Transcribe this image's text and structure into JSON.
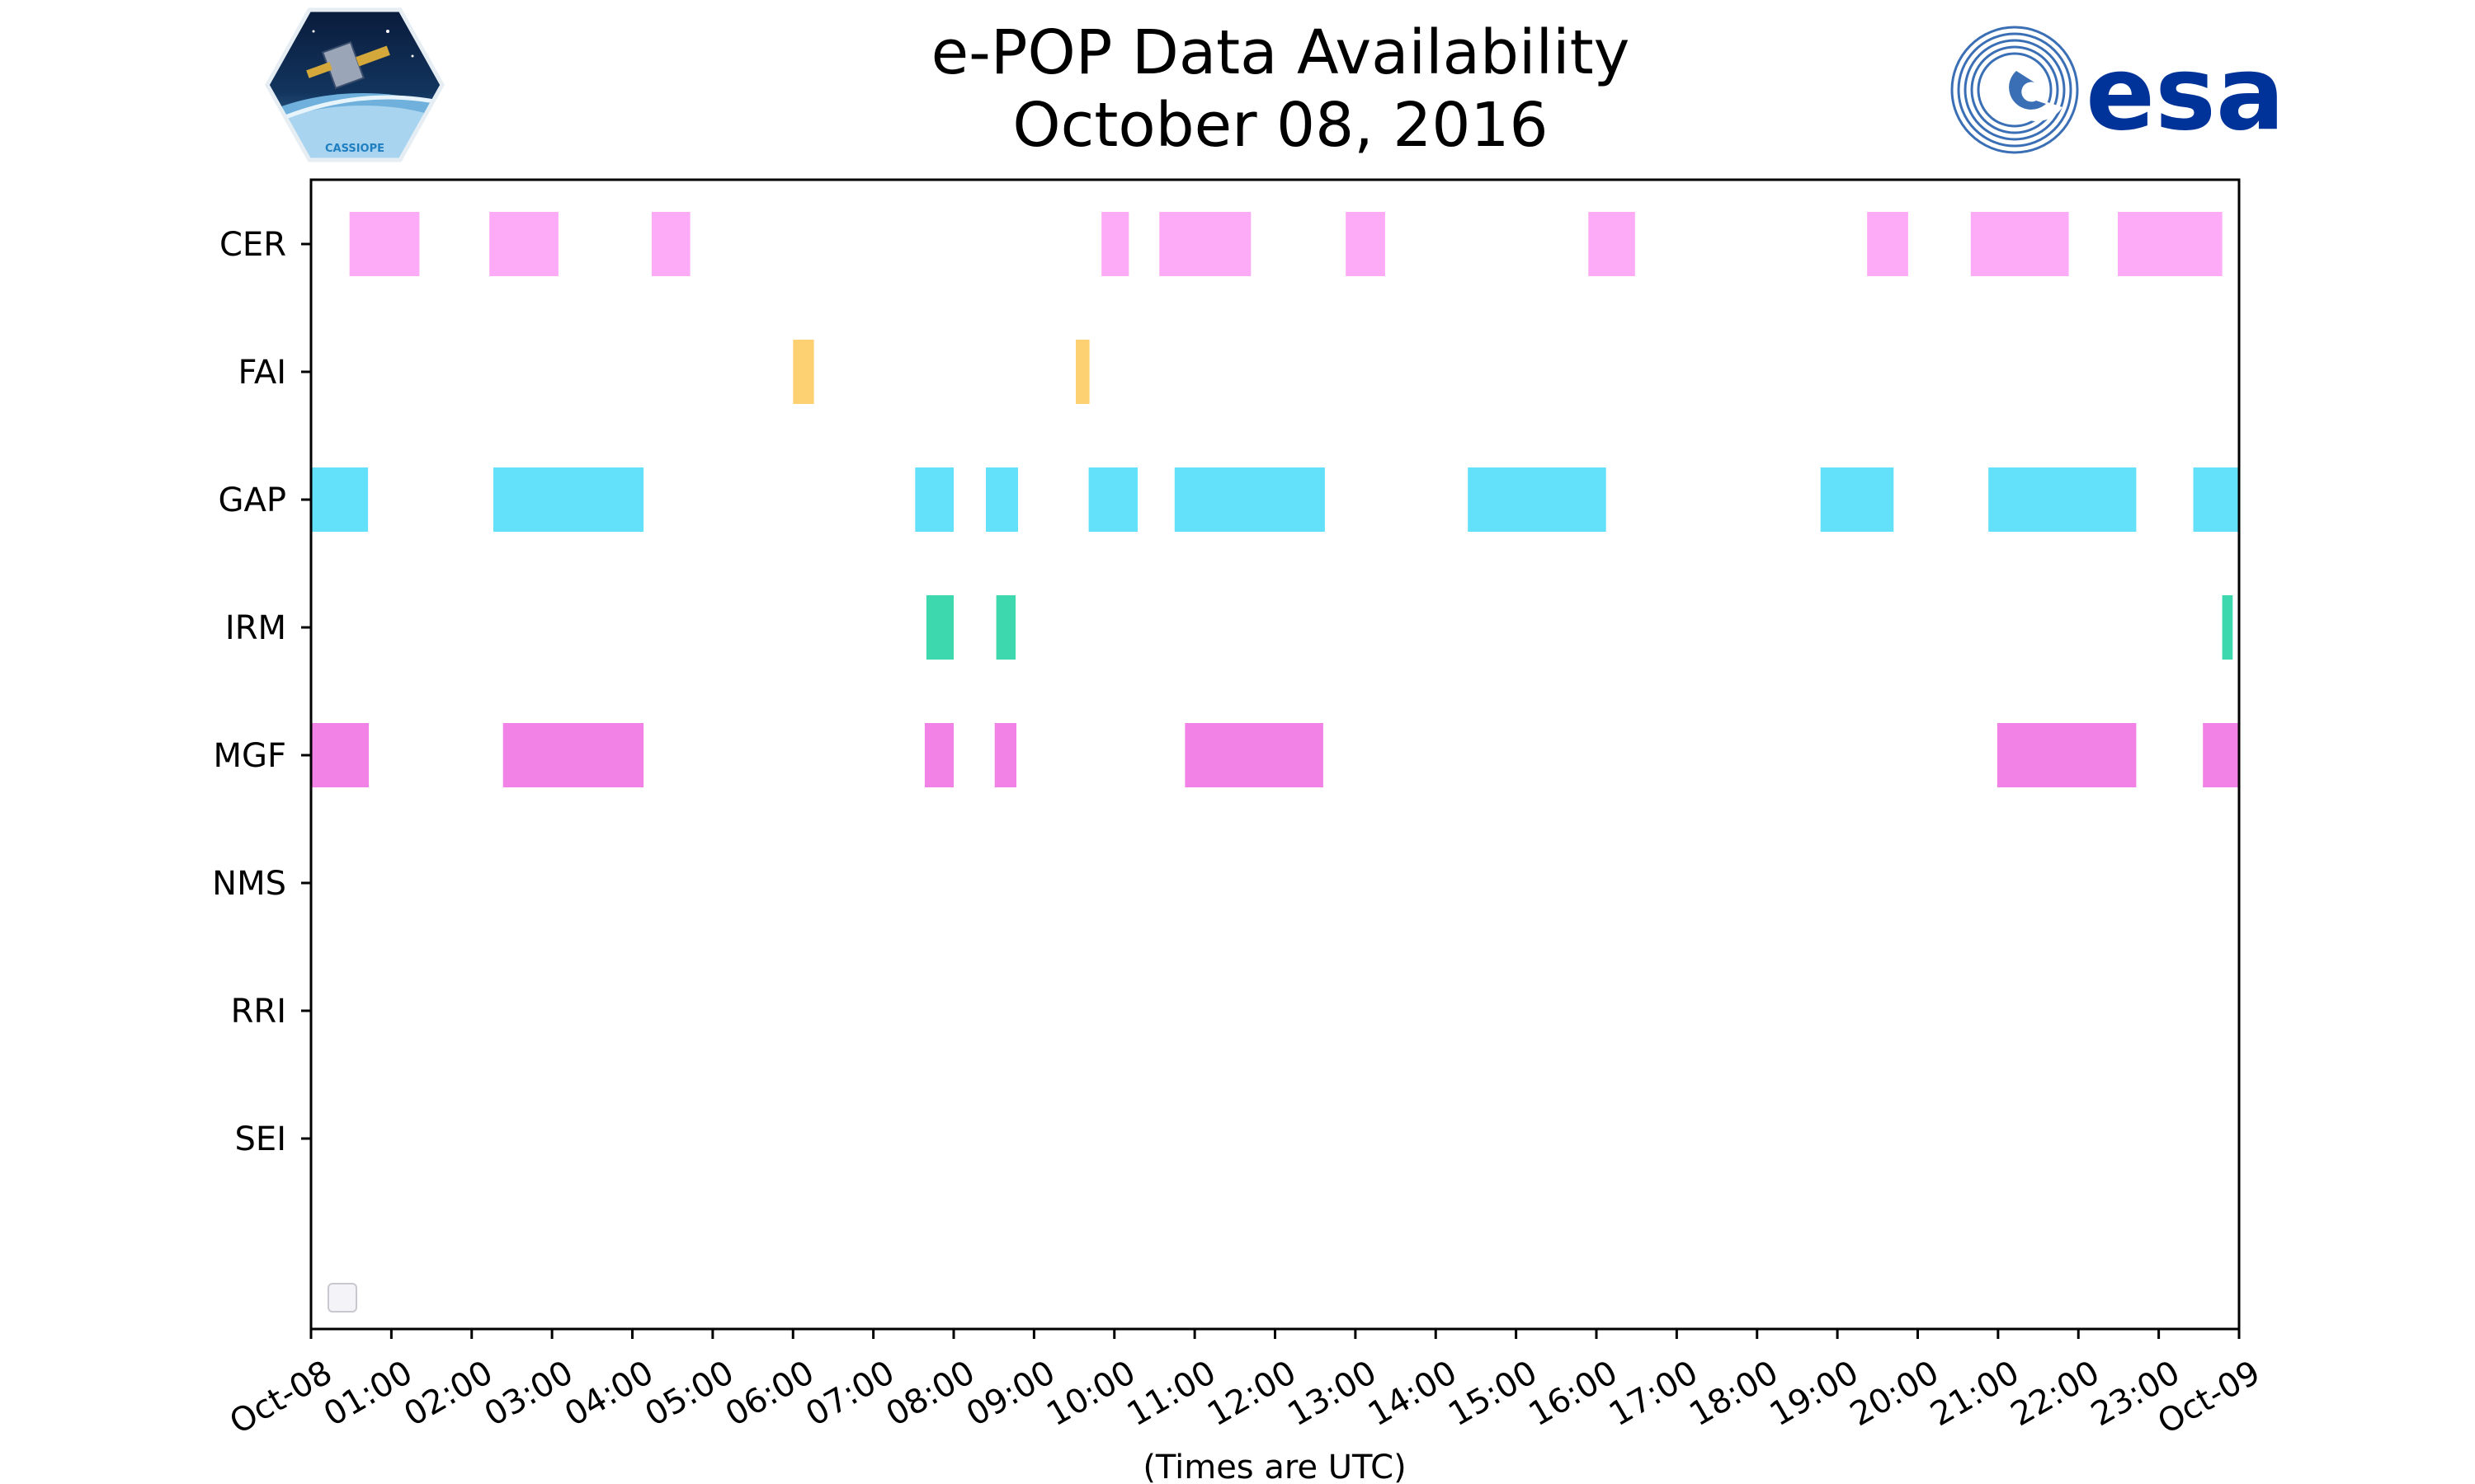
{
  "title": "e-POP Data Availability",
  "subtitle": "October 08, 2016",
  "logos": {
    "left": "CASSIOPE",
    "right": "esa"
  },
  "chart_data": {
    "type": "timeline",
    "xlabel": "(Times are UTC)",
    "x_range_hours": [
      0,
      24
    ],
    "x_ticks": [
      "Oct-08",
      "01:00",
      "02:00",
      "03:00",
      "04:00",
      "05:00",
      "06:00",
      "07:00",
      "08:00",
      "09:00",
      "10:00",
      "11:00",
      "12:00",
      "13:00",
      "14:00",
      "15:00",
      "16:00",
      "17:00",
      "18:00",
      "19:00",
      "20:00",
      "21:00",
      "22:00",
      "23:00",
      "Oct-09"
    ],
    "categories": [
      "CER",
      "FAI",
      "GAP",
      "IRM",
      "MGF",
      "NMS",
      "RRI",
      "SEI"
    ],
    "colors": {
      "CER": "#fdaaf7",
      "FAI": "#fdd072",
      "GAP": "#63e0fa",
      "IRM": "#3dd8ae",
      "MGF": "#f282e6"
    },
    "series": [
      {
        "name": "CER",
        "intervals": [
          [
            0.48,
            1.35
          ],
          [
            2.22,
            3.08
          ],
          [
            4.24,
            4.72
          ],
          [
            9.84,
            10.18
          ],
          [
            10.56,
            11.7
          ],
          [
            12.88,
            13.37
          ],
          [
            15.9,
            16.48
          ],
          [
            19.37,
            19.88
          ],
          [
            20.66,
            21.88
          ],
          [
            22.49,
            23.79
          ]
        ]
      },
      {
        "name": "FAI",
        "intervals": [
          [
            6.0,
            6.26
          ],
          [
            9.52,
            9.69
          ]
        ]
      },
      {
        "name": "GAP",
        "intervals": [
          [
            0.0,
            0.71
          ],
          [
            2.27,
            4.14
          ],
          [
            7.52,
            8.0
          ],
          [
            8.4,
            8.8
          ],
          [
            9.68,
            10.29
          ],
          [
            10.75,
            12.62
          ],
          [
            14.4,
            16.12
          ],
          [
            18.79,
            19.7
          ],
          [
            20.88,
            22.72
          ],
          [
            23.43,
            24.0
          ]
        ]
      },
      {
        "name": "IRM",
        "intervals": [
          [
            7.66,
            8.0
          ],
          [
            8.53,
            8.77
          ],
          [
            23.79,
            23.92
          ]
        ]
      },
      {
        "name": "MGF",
        "intervals": [
          [
            0.0,
            0.72
          ],
          [
            2.39,
            4.14
          ],
          [
            7.64,
            8.0
          ],
          [
            8.51,
            8.78
          ],
          [
            10.88,
            12.6
          ],
          [
            20.99,
            22.72
          ],
          [
            23.55,
            24.0
          ]
        ]
      },
      {
        "name": "NMS",
        "intervals": []
      },
      {
        "name": "RRI",
        "intervals": []
      },
      {
        "name": "SEI",
        "intervals": []
      }
    ],
    "legend": "bottom-left, empty"
  }
}
